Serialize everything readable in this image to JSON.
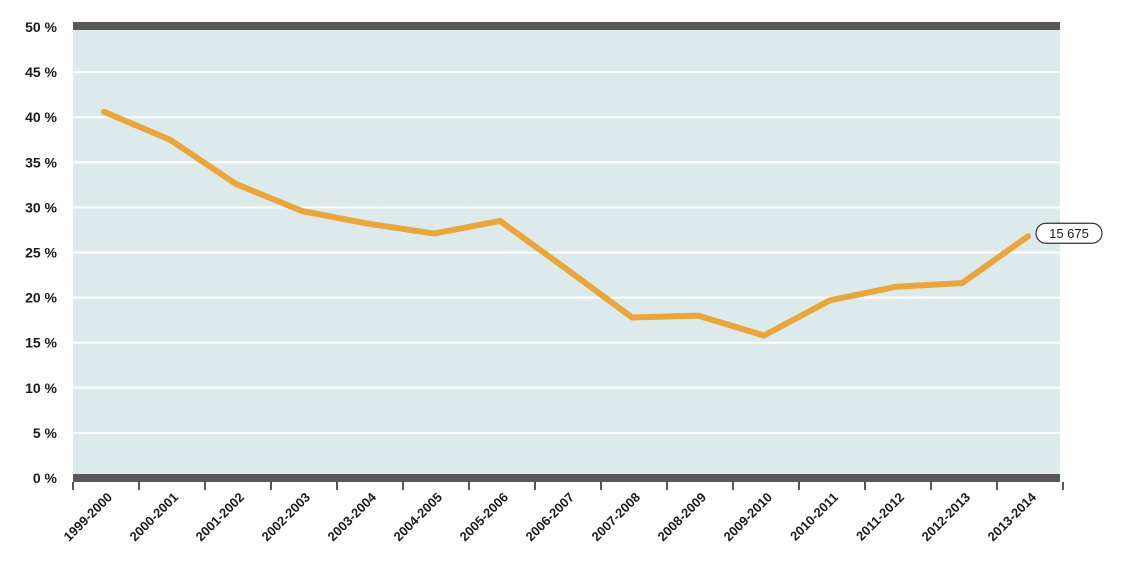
{
  "chart_data": {
    "type": "line",
    "categories": [
      "1999-2000",
      "2000-2001",
      "2001-2002",
      "2002-2003",
      "2003-2004",
      "2004-2005",
      "2005-2006",
      "2006-2007",
      "2007-2008",
      "2008-2009",
      "2009-2010",
      "2010-2011",
      "2011-2012",
      "2012-2013",
      "2013-2014"
    ],
    "series": [
      {
        "values": [
          40.6,
          37.5,
          32.6,
          29.6,
          28.2,
          27.1,
          28.5,
          23.2,
          17.8,
          18.0,
          15.8,
          19.7,
          21.2,
          21.6,
          26.8
        ]
      }
    ],
    "y_tick_labels": [
      "0 %",
      "5 %",
      "10 %",
      "15 %",
      "20 %",
      "25 %",
      "30 %",
      "35 %",
      "40 %",
      "45 %",
      "50 %"
    ],
    "ylim": [
      0,
      50
    ],
    "annotation": {
      "text": "15 675",
      "category": "2013-2014"
    },
    "grid": true,
    "colors": {
      "line": "#e9a63a",
      "plot_bg": "#ddeaec",
      "frame": "#58585a",
      "grid": "#ffffff"
    }
  }
}
